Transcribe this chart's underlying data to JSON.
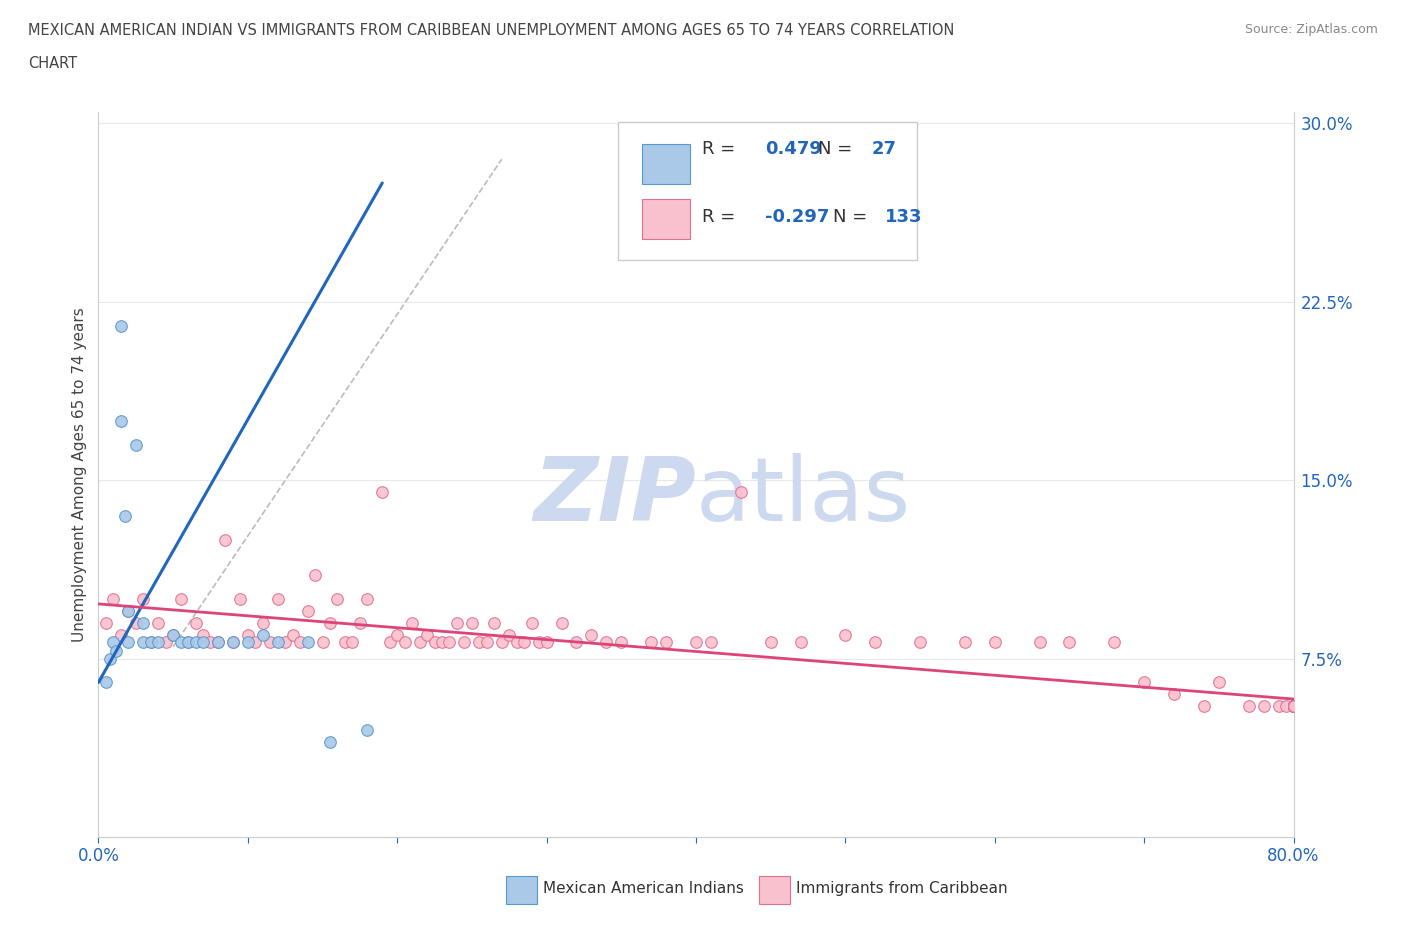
{
  "title_line1": "MEXICAN AMERICAN INDIAN VS IMMIGRANTS FROM CARIBBEAN UNEMPLOYMENT AMONG AGES 65 TO 74 YEARS CORRELATION",
  "title_line2": "CHART",
  "source": "Source: ZipAtlas.com",
  "ylabel": "Unemployment Among Ages 65 to 74 years",
  "xlim": [
    0.0,
    0.8
  ],
  "ylim": [
    0.0,
    0.305
  ],
  "xticks": [
    0.0,
    0.1,
    0.2,
    0.3,
    0.4,
    0.5,
    0.6,
    0.7,
    0.8
  ],
  "xticklabels": [
    "0.0%",
    "",
    "",
    "",
    "",
    "",
    "",
    "",
    "80.0%"
  ],
  "yticks_right": [
    0.075,
    0.15,
    0.225,
    0.3
  ],
  "ytick_labels_right": [
    "7.5%",
    "15.0%",
    "22.5%",
    "30.0%"
  ],
  "blue_R": 0.479,
  "blue_N": 27,
  "pink_R": -0.297,
  "pink_N": 133,
  "blue_fill_color": "#aac8e8",
  "pink_fill_color": "#f9c0ce",
  "blue_edge_color": "#5599cc",
  "pink_edge_color": "#e07090",
  "blue_line_color": "#2266bb",
  "pink_line_color": "#dd4477",
  "legend_text_color": "#2266bb",
  "watermark_color": "#ccd9ee",
  "background_color": "#ffffff",
  "grid_color": "#e8e8e8",
  "blue_scatter_x": [
    0.005,
    0.008,
    0.01,
    0.012,
    0.015,
    0.015,
    0.018,
    0.02,
    0.02,
    0.025,
    0.03,
    0.03,
    0.035,
    0.04,
    0.05,
    0.055,
    0.06,
    0.065,
    0.07,
    0.08,
    0.09,
    0.1,
    0.11,
    0.12,
    0.14,
    0.155,
    0.18
  ],
  "blue_scatter_y": [
    0.065,
    0.075,
    0.082,
    0.078,
    0.215,
    0.175,
    0.135,
    0.082,
    0.095,
    0.165,
    0.082,
    0.09,
    0.082,
    0.082,
    0.085,
    0.082,
    0.082,
    0.082,
    0.082,
    0.082,
    0.082,
    0.082,
    0.085,
    0.082,
    0.082,
    0.04,
    0.045
  ],
  "pink_scatter_x": [
    0.005,
    0.01,
    0.015,
    0.02,
    0.025,
    0.03,
    0.035,
    0.04,
    0.045,
    0.05,
    0.055,
    0.06,
    0.065,
    0.07,
    0.075,
    0.08,
    0.085,
    0.09,
    0.095,
    0.1,
    0.105,
    0.11,
    0.115,
    0.12,
    0.125,
    0.13,
    0.135,
    0.14,
    0.145,
    0.15,
    0.155,
    0.16,
    0.165,
    0.17,
    0.175,
    0.18,
    0.19,
    0.195,
    0.2,
    0.205,
    0.21,
    0.215,
    0.22,
    0.225,
    0.23,
    0.235,
    0.24,
    0.245,
    0.25,
    0.255,
    0.26,
    0.265,
    0.27,
    0.275,
    0.28,
    0.285,
    0.29,
    0.295,
    0.3,
    0.31,
    0.32,
    0.33,
    0.34,
    0.35,
    0.37,
    0.38,
    0.4,
    0.41,
    0.43,
    0.45,
    0.47,
    0.5,
    0.52,
    0.55,
    0.58,
    0.6,
    0.63,
    0.65,
    0.68,
    0.7,
    0.72,
    0.74,
    0.75,
    0.77,
    0.78,
    0.79,
    0.795,
    0.8,
    0.8,
    0.8,
    0.8,
    0.8,
    0.8,
    0.8,
    0.8,
    0.8,
    0.8,
    0.8,
    0.8,
    0.8,
    0.8,
    0.8,
    0.8,
    0.8,
    0.8,
    0.8,
    0.8,
    0.8,
    0.8,
    0.8,
    0.8,
    0.8,
    0.8,
    0.8,
    0.8,
    0.8,
    0.8,
    0.8,
    0.8,
    0.8,
    0.8,
    0.8,
    0.8,
    0.8,
    0.8,
    0.8,
    0.8,
    0.8,
    0.8,
    0.8,
    0.8,
    0.8,
    0.8,
    0.8
  ],
  "pink_scatter_y": [
    0.09,
    0.1,
    0.085,
    0.095,
    0.09,
    0.1,
    0.082,
    0.09,
    0.082,
    0.085,
    0.1,
    0.082,
    0.09,
    0.085,
    0.082,
    0.082,
    0.125,
    0.082,
    0.1,
    0.085,
    0.082,
    0.09,
    0.082,
    0.1,
    0.082,
    0.085,
    0.082,
    0.095,
    0.11,
    0.082,
    0.09,
    0.1,
    0.082,
    0.082,
    0.09,
    0.1,
    0.145,
    0.082,
    0.085,
    0.082,
    0.09,
    0.082,
    0.085,
    0.082,
    0.082,
    0.082,
    0.09,
    0.082,
    0.09,
    0.082,
    0.082,
    0.09,
    0.082,
    0.085,
    0.082,
    0.082,
    0.09,
    0.082,
    0.082,
    0.09,
    0.082,
    0.085,
    0.082,
    0.082,
    0.082,
    0.082,
    0.082,
    0.082,
    0.145,
    0.082,
    0.082,
    0.085,
    0.082,
    0.082,
    0.082,
    0.082,
    0.082,
    0.082,
    0.082,
    0.065,
    0.06,
    0.055,
    0.065,
    0.055,
    0.055,
    0.055,
    0.055,
    0.055,
    0.055,
    0.055,
    0.055,
    0.055,
    0.055,
    0.055,
    0.055,
    0.055,
    0.055,
    0.055,
    0.055,
    0.055,
    0.055,
    0.055,
    0.055,
    0.055,
    0.055,
    0.055,
    0.055,
    0.055,
    0.055,
    0.055,
    0.055,
    0.055,
    0.055,
    0.055,
    0.055,
    0.055,
    0.055,
    0.055,
    0.055,
    0.055,
    0.055,
    0.055,
    0.055,
    0.055,
    0.055,
    0.055,
    0.055,
    0.055,
    0.055,
    0.055,
    0.055,
    0.055,
    0.055,
    0.055
  ],
  "blue_line_x": [
    0.0,
    0.19
  ],
  "blue_line_y": [
    0.065,
    0.275
  ],
  "pink_line_x": [
    0.0,
    0.8
  ],
  "pink_line_y": [
    0.098,
    0.058
  ],
  "dash_line_x": [
    0.05,
    0.27
  ],
  "dash_line_y": [
    0.08,
    0.285
  ]
}
